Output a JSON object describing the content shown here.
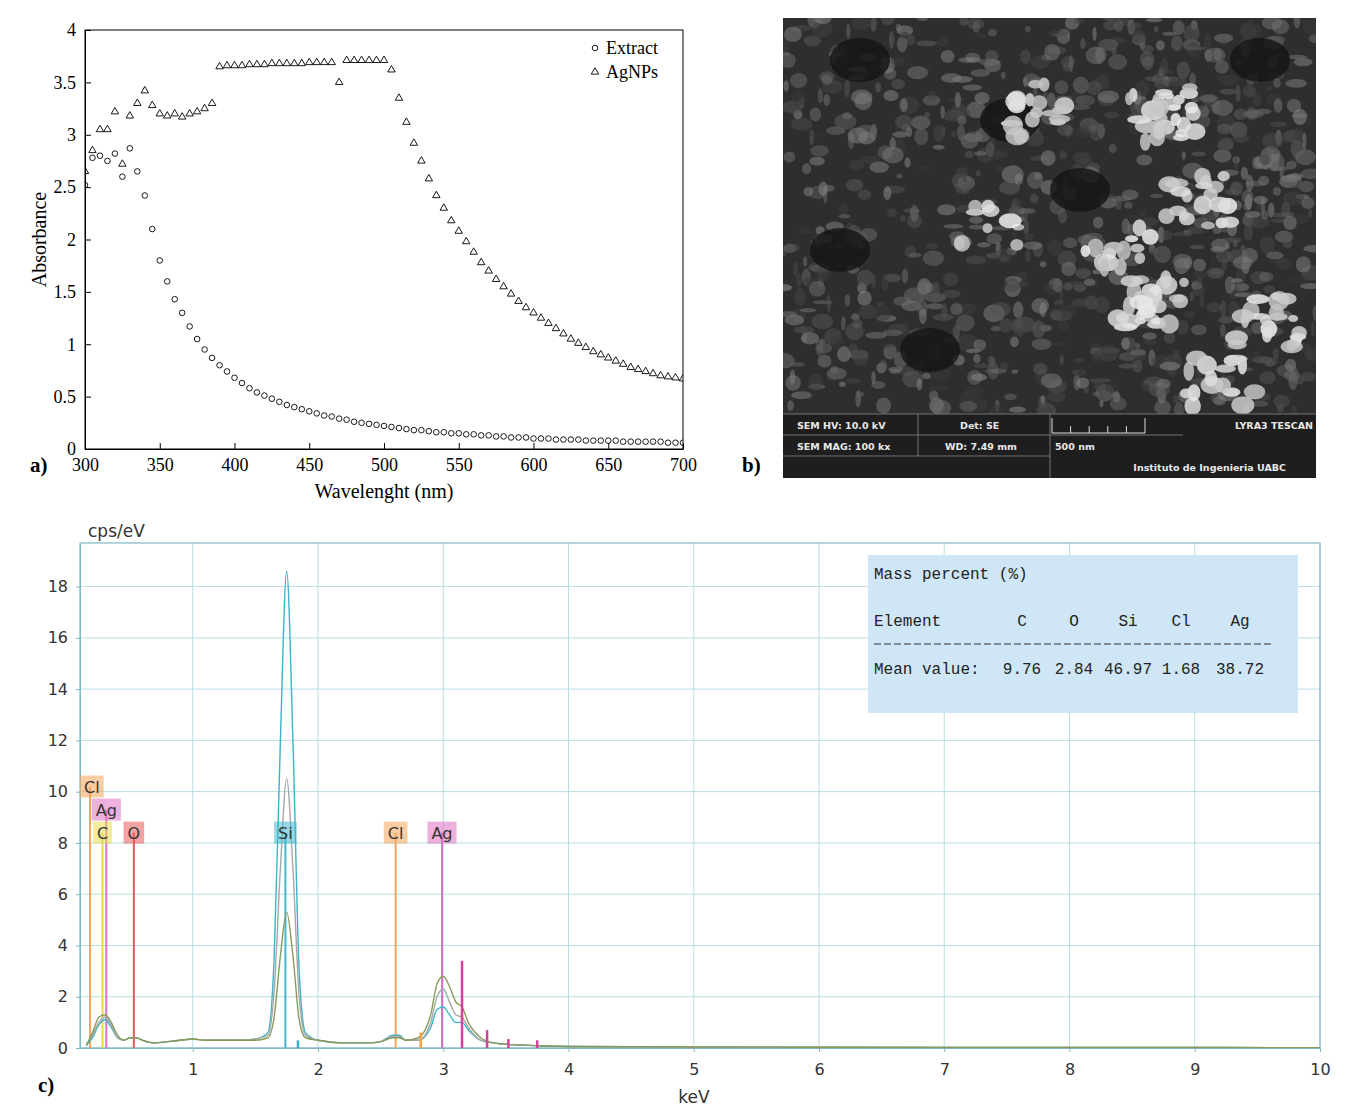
{
  "chart_data": [
    {
      "type": "scatter",
      "panel_label": "a)",
      "x_label": "Wavelenght (nm)",
      "y_label": "Absorbance",
      "xlim": [
        300,
        700
      ],
      "ylim": [
        0,
        4
      ],
      "xticks": [
        300,
        350,
        400,
        450,
        500,
        550,
        600,
        650,
        700
      ],
      "yticks": [
        0,
        0.5,
        1,
        1.5,
        2,
        2.5,
        3,
        3.5,
        4
      ],
      "grid": false,
      "legend": "top-right",
      "x": [
        300,
        305,
        310,
        315,
        320,
        325,
        330,
        335,
        340,
        345,
        350,
        355,
        360,
        365,
        370,
        375,
        380,
        385,
        390,
        395,
        400,
        405,
        410,
        415,
        420,
        425,
        430,
        435,
        440,
        445,
        450,
        455,
        460,
        465,
        470,
        475,
        480,
        485,
        490,
        495,
        500,
        505,
        510,
        515,
        520,
        525,
        530,
        535,
        540,
        545,
        550,
        555,
        560,
        565,
        570,
        575,
        580,
        585,
        590,
        595,
        600,
        605,
        610,
        615,
        620,
        625,
        630,
        635,
        640,
        645,
        650,
        655,
        660,
        665,
        670,
        675,
        680,
        685,
        690,
        695,
        700
      ],
      "series": [
        {
          "name": "Extract",
          "marker": "circle",
          "color": "#000000",
          "values": [
            2.52,
            2.78,
            2.8,
            2.75,
            2.82,
            2.6,
            2.87,
            2.65,
            2.42,
            2.1,
            1.8,
            1.6,
            1.43,
            1.3,
            1.17,
            1.05,
            0.95,
            0.87,
            0.8,
            0.74,
            0.68,
            0.63,
            0.58,
            0.54,
            0.51,
            0.48,
            0.45,
            0.42,
            0.4,
            0.38,
            0.36,
            0.34,
            0.32,
            0.31,
            0.29,
            0.28,
            0.26,
            0.25,
            0.24,
            0.23,
            0.22,
            0.21,
            0.2,
            0.19,
            0.18,
            0.18,
            0.17,
            0.16,
            0.16,
            0.15,
            0.15,
            0.14,
            0.14,
            0.13,
            0.13,
            0.12,
            0.12,
            0.11,
            0.11,
            0.11,
            0.1,
            0.1,
            0.1,
            0.09,
            0.09,
            0.09,
            0.09,
            0.08,
            0.08,
            0.08,
            0.08,
            0.08,
            0.07,
            0.07,
            0.07,
            0.07,
            0.07,
            0.07,
            0.06,
            0.06,
            0.06
          ]
        },
        {
          "name": "AgNPs",
          "marker": "triangle",
          "color": "#000000",
          "values": [
            2.65,
            2.85,
            3.05,
            3.05,
            3.22,
            2.72,
            3.18,
            3.3,
            3.42,
            3.28,
            3.2,
            3.18,
            3.2,
            3.17,
            3.2,
            3.22,
            3.25,
            3.3,
            3.65,
            3.66,
            3.66,
            3.66,
            3.67,
            3.67,
            3.67,
            3.68,
            3.68,
            3.68,
            3.68,
            3.68,
            3.69,
            3.69,
            3.69,
            3.69,
            3.5,
            3.71,
            3.71,
            3.71,
            3.71,
            3.71,
            3.71,
            3.62,
            3.35,
            3.12,
            2.92,
            2.75,
            2.58,
            2.42,
            2.3,
            2.18,
            2.08,
            1.98,
            1.88,
            1.78,
            1.7,
            1.62,
            1.55,
            1.48,
            1.41,
            1.35,
            1.3,
            1.25,
            1.2,
            1.15,
            1.1,
            1.05,
            1.01,
            0.97,
            0.93,
            0.9,
            0.87,
            0.84,
            0.81,
            0.78,
            0.76,
            0.74,
            0.72,
            0.7,
            0.69,
            0.68,
            0.67
          ]
        }
      ]
    },
    {
      "type": "line",
      "panel_label": "c)",
      "x_label": "keV",
      "y_label": "cps/eV",
      "xlim": [
        0.1,
        10
      ],
      "ylim": [
        0,
        19.7
      ],
      "xticks": [
        1,
        2,
        3,
        4,
        5,
        6,
        7,
        8,
        9,
        10
      ],
      "yticks": [
        0,
        2,
        4,
        6,
        8,
        10,
        12,
        14,
        16,
        18
      ],
      "grid": true,
      "x": [
        0.15,
        0.2,
        0.25,
        0.3,
        0.35,
        0.4,
        0.45,
        0.5,
        0.55,
        0.6,
        0.7,
        0.8,
        0.9,
        1.0,
        1.1,
        1.2,
        1.3,
        1.4,
        1.5,
        1.6,
        1.65,
        1.7,
        1.75,
        1.8,
        1.85,
        1.9,
        2.0,
        2.2,
        2.4,
        2.5,
        2.6,
        2.65,
        2.7,
        2.8,
        2.9,
        2.95,
        3.0,
        3.05,
        3.1,
        3.15,
        3.2,
        3.3,
        3.4,
        3.6,
        3.8,
        4.0,
        5,
        6,
        7,
        8,
        9,
        10
      ],
      "series": [
        {
          "type": "line",
          "color": "#3cb4c8",
          "values": [
            0.1,
            0.4,
            0.9,
            1.1,
            0.8,
            0.4,
            0.3,
            0.4,
            0.4,
            0.3,
            0.2,
            0.25,
            0.3,
            0.35,
            0.3,
            0.3,
            0.3,
            0.3,
            0.35,
            0.6,
            3.5,
            12,
            18.6,
            12,
            3,
            0.6,
            0.3,
            0.2,
            0.2,
            0.25,
            0.5,
            0.5,
            0.3,
            0.3,
            0.8,
            1.5,
            1.6,
            1.3,
            1.0,
            1.0,
            0.7,
            0.3,
            0.2,
            0.12,
            0.08,
            0.06,
            0.04,
            0.03,
            0.02,
            0.02,
            0.02,
            0.01
          ]
        },
        {
          "type": "line",
          "color": "#a8a8a8",
          "values": [
            0.1,
            0.5,
            1.0,
            1.2,
            0.9,
            0.4,
            0.3,
            0.4,
            0.4,
            0.3,
            0.2,
            0.25,
            0.3,
            0.35,
            0.3,
            0.3,
            0.3,
            0.3,
            0.35,
            0.5,
            2.2,
            7,
            10.5,
            7,
            2,
            0.5,
            0.3,
            0.2,
            0.2,
            0.25,
            0.45,
            0.45,
            0.3,
            0.3,
            1.0,
            2.0,
            2.3,
            1.8,
            1.3,
            1.2,
            0.8,
            0.3,
            0.2,
            0.12,
            0.08,
            0.06,
            0.04,
            0.03,
            0.02,
            0.02,
            0.02,
            0.01
          ]
        },
        {
          "type": "line",
          "color": "#8a9a5b",
          "values": [
            0.1,
            0.6,
            1.2,
            1.3,
            1.0,
            0.5,
            0.3,
            0.4,
            0.4,
            0.3,
            0.2,
            0.25,
            0.3,
            0.35,
            0.3,
            0.3,
            0.3,
            0.3,
            0.3,
            0.4,
            1.2,
            3.6,
            5.3,
            3.6,
            1.1,
            0.4,
            0.3,
            0.2,
            0.2,
            0.25,
            0.4,
            0.4,
            0.3,
            0.4,
            1.3,
            2.5,
            2.8,
            2.4,
            1.8,
            1.6,
            1.0,
            0.4,
            0.2,
            0.12,
            0.08,
            0.06,
            0.04,
            0.03,
            0.02,
            0.02,
            0.02,
            0.01
          ]
        },
        {
          "type": "stem",
          "color": "#d4409c",
          "x": [
            3.15,
            3.35,
            3.52,
            3.75
          ],
          "values": [
            3.4,
            0.7,
            0.35,
            0.3
          ]
        },
        {
          "type": "stem",
          "color": "#f0a040",
          "x": [
            2.82
          ],
          "values": [
            0.6
          ]
        },
        {
          "type": "stem",
          "color": "#3ab0c8",
          "x": [
            1.84
          ],
          "values": [
            0.3
          ]
        }
      ],
      "annotations": [
        {
          "label": "Cl",
          "x": 0.18,
          "y": 10.2,
          "color": "#f5a55a"
        },
        {
          "label": "Ag",
          "x": 0.31,
          "y": 9.3,
          "color": "#e070c0"
        },
        {
          "label": "C",
          "x": 0.28,
          "y": 8.4,
          "color": "#e8d84a"
        },
        {
          "label": "O",
          "x": 0.53,
          "y": 8.4,
          "color": "#e85a5a"
        },
        {
          "label": "Si",
          "x": 1.74,
          "y": 8.4,
          "color": "#40b8d0"
        },
        {
          "label": "Cl",
          "x": 2.62,
          "y": 8.4,
          "color": "#f5a55a"
        },
        {
          "label": "Ag",
          "x": 2.99,
          "y": 8.4,
          "color": "#e070c0"
        }
      ],
      "table": {
        "title": "Mass percent (%)",
        "header_label": "Element",
        "elements": [
          "C",
          "O",
          "Si",
          "Cl",
          "Ag"
        ],
        "row_label": "Mean value:",
        "values": [
          9.76,
          2.84,
          46.97,
          1.68,
          38.72
        ]
      }
    }
  ],
  "sem_image": {
    "panel_label": "b)",
    "hv": "SEM HV: 10.0 kV",
    "detector": "Det: SE",
    "instrument": "LYRA3 TESCAN",
    "magnification": "SEM MAG: 100 kx",
    "working_distance": "WD: 7.49 mm",
    "scale_bar": "500 nm",
    "institution": "Instituto de Ingenieria UABC"
  }
}
